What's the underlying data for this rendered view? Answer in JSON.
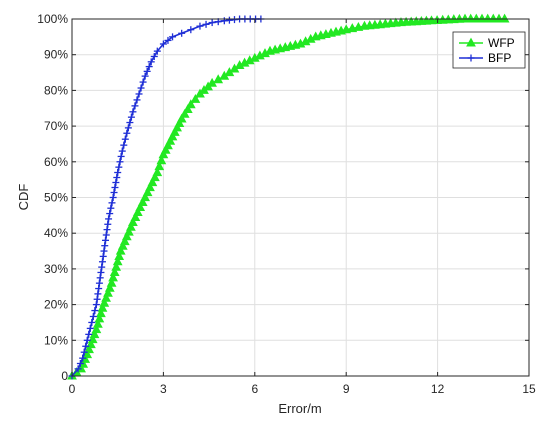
{
  "chart_data": {
    "type": "line",
    "xlabel": "Error/m",
    "ylabel": "CDF",
    "xlim": [
      0,
      15
    ],
    "ylim": [
      0,
      1
    ],
    "x_ticks": [
      0,
      3,
      6,
      9,
      12,
      15
    ],
    "x_tick_labels": [
      "0",
      "3",
      "6",
      "9",
      "12",
      "15"
    ],
    "y_ticks": [
      0,
      0.1,
      0.2,
      0.3,
      0.4,
      0.5,
      0.6,
      0.7,
      0.8,
      0.9,
      1.0
    ],
    "y_tick_labels": [
      "0",
      "10%",
      "20%",
      "30%",
      "40%",
      "50%",
      "60%",
      "70%",
      "80%",
      "90%",
      "100%"
    ],
    "grid": true,
    "legend_position": "top-right",
    "series": [
      {
        "name": "WFP",
        "color": "#22e822",
        "marker": "triangle",
        "x": [
          0,
          0.3,
          0.5,
          0.8,
          1.0,
          1.3,
          1.6,
          2.0,
          2.4,
          2.8,
          3.0,
          3.3,
          3.6,
          3.9,
          4.2,
          4.6,
          5.0,
          5.5,
          6.0,
          6.5,
          7.0,
          7.5,
          8.0,
          8.5,
          9.0,
          9.6,
          10.8,
          11.8,
          12.9,
          14.2
        ],
        "y": [
          0,
          0.02,
          0.06,
          0.13,
          0.19,
          0.26,
          0.35,
          0.43,
          0.5,
          0.57,
          0.62,
          0.67,
          0.72,
          0.76,
          0.79,
          0.82,
          0.84,
          0.87,
          0.89,
          0.91,
          0.92,
          0.93,
          0.95,
          0.96,
          0.97,
          0.98,
          0.99,
          0.995,
          1.0,
          1.0
        ]
      },
      {
        "name": "BFP",
        "color": "#1f2fd6",
        "marker": "plus",
        "x": [
          0,
          0.2,
          0.35,
          0.5,
          0.65,
          0.8,
          0.9,
          1.0,
          1.1,
          1.2,
          1.35,
          1.5,
          1.65,
          1.8,
          2.0,
          2.2,
          2.4,
          2.6,
          2.8,
          3.0,
          3.3,
          3.6,
          3.9,
          4.2,
          4.6,
          5.0,
          5.5,
          6.2
        ],
        "y": [
          0,
          0.02,
          0.05,
          0.1,
          0.15,
          0.2,
          0.26,
          0.32,
          0.38,
          0.44,
          0.5,
          0.57,
          0.63,
          0.68,
          0.74,
          0.79,
          0.84,
          0.88,
          0.91,
          0.93,
          0.95,
          0.96,
          0.97,
          0.98,
          0.99,
          0.995,
          1.0,
          1.0
        ]
      }
    ]
  }
}
